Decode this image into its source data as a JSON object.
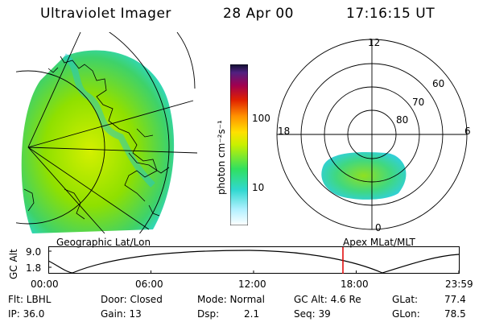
{
  "header": {
    "instrument": "Ultraviolet Imager",
    "date": "28 Apr 00",
    "time": "17:16:15 UT"
  },
  "colorbar": {
    "unit_label": "photon cm⁻²s⁻¹",
    "ticks": [
      "100",
      "10"
    ]
  },
  "polar_plot": {
    "mlt_labels": {
      "top": "12",
      "left": "18",
      "right": "6",
      "bottom": "0"
    },
    "lat_labels": [
      "60",
      "70",
      "80"
    ]
  },
  "map_labels": {
    "left": "Geographic Lat/Lon",
    "right": "Apex MLat/MLT"
  },
  "timeline": {
    "ylabel": "GC Alt",
    "y_ticks": [
      "9.0",
      "1.8"
    ],
    "x_ticks": [
      "00:00",
      "06:00",
      "12:00",
      "18:00",
      "23:59"
    ],
    "marker_color": "#e00000"
  },
  "info": {
    "flt": "Flt: LBHL",
    "ip": "IP: 36.0",
    "door": "Door: Closed",
    "gain": "Gain: 13",
    "mode": "Mode: Normal",
    "dsp_label": "Dsp:",
    "dsp_value": "2.1",
    "gc_alt": "GC Alt: 4.6 Re",
    "seq": "Seq: 39",
    "glat_label": "GLat:",
    "glat_value": "77.4",
    "glon_label": "GLon:",
    "glon_value": "78.5"
  }
}
